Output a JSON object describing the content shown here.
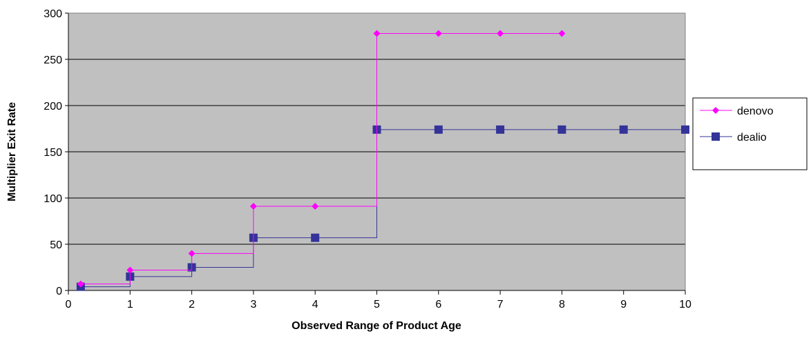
{
  "chart_data": {
    "type": "line",
    "title": "",
    "xlabel": "Observed Range of Product Age",
    "ylabel": "Multiplier Exit Rate",
    "xlim": [
      0,
      10
    ],
    "ylim": [
      0,
      300
    ],
    "x_ticks": [
      0,
      1,
      2,
      3,
      4,
      5,
      6,
      7,
      8,
      9,
      10
    ],
    "y_ticks": [
      0,
      50,
      100,
      150,
      200,
      250,
      300
    ],
    "grid": "horizontal",
    "legend_position": "right",
    "plot_background": "#c0c0c0",
    "step": true,
    "series": [
      {
        "name": "denovo",
        "color": "#ff00ff",
        "marker": "diamond",
        "x": [
          0.2,
          1,
          2,
          3,
          4,
          5,
          6,
          7,
          8
        ],
        "y": [
          7,
          22,
          40,
          91,
          91,
          278,
          278,
          278,
          278
        ]
      },
      {
        "name": "dealio",
        "color": "#333399",
        "marker": "square",
        "x": [
          0.2,
          1,
          2,
          3,
          4,
          5,
          6,
          7,
          8,
          9,
          10
        ],
        "y": [
          4,
          15,
          25,
          57,
          57,
          174,
          174,
          174,
          174,
          174,
          174
        ]
      }
    ]
  }
}
